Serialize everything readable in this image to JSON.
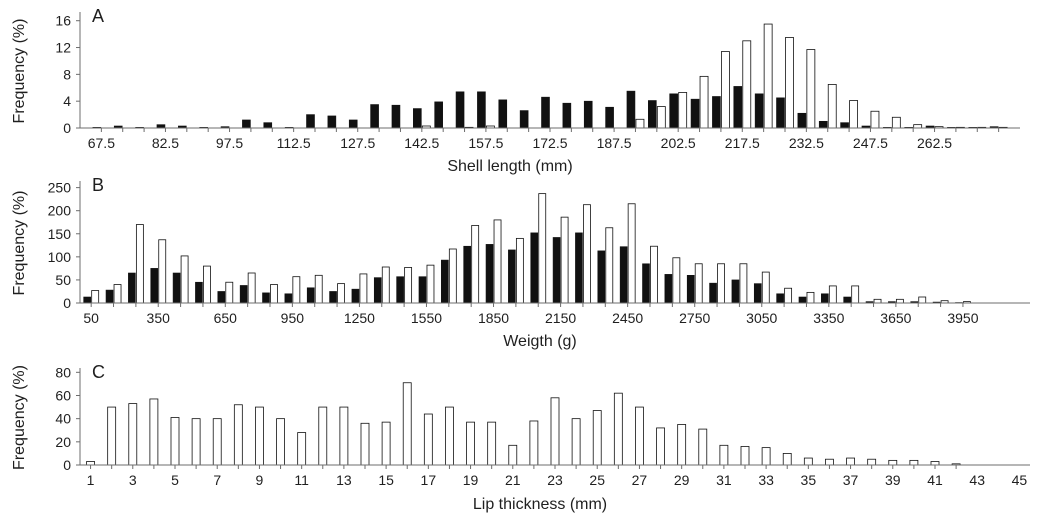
{
  "figure": {
    "colors": {
      "axis": "#6c6c6c",
      "dark_bar_fill": "#111111",
      "light_bar_fill": "#ffffff",
      "bar_stroke": "#111111",
      "text": "#1f1f1f"
    }
  },
  "chart_data": [
    {
      "type": "bar",
      "panel_label": "A",
      "xlabel": "Shell length (mm)",
      "ylabel": "Frequency (%)",
      "ylim": [
        0,
        17
      ],
      "yticks": [
        0,
        4,
        8,
        12,
        16
      ],
      "xlim": [
        62.5,
        282.5
      ],
      "xticks": [
        67.5,
        82.5,
        97.5,
        112.5,
        127.5,
        142.5,
        157.5,
        172.5,
        187.5,
        202.5,
        217.5,
        232.5,
        247.5,
        262.5
      ],
      "xtick_labels": [
        "67.5",
        "82.5",
        "97.5",
        "112.5",
        "127.5",
        "142.5",
        "157.5",
        "172.5",
        "187.5",
        "202.5",
        "217.5",
        "232.5",
        "247.5",
        "262.5"
      ],
      "grid": false,
      "legend": "none",
      "x": [
        67.5,
        72.5,
        77.5,
        82.5,
        87.5,
        92.5,
        97.5,
        102.5,
        107.5,
        112.5,
        117.5,
        122.5,
        127.5,
        132.5,
        137.5,
        142.5,
        147.5,
        152.5,
        157.5,
        162.5,
        167.5,
        172.5,
        177.5,
        182.5,
        187.5,
        192.5,
        197.5,
        202.5,
        207.5,
        212.5,
        217.5,
        222.5,
        227.5,
        232.5,
        237.5,
        242.5,
        247.5,
        252.5,
        257.5,
        262.5,
        267.5,
        272.5,
        277.5
      ],
      "series": [
        {
          "style": "dark",
          "values": [
            0.1,
            0.3,
            0.1,
            0.5,
            0.3,
            0.1,
            0.2,
            1.2,
            0.8,
            0.1,
            2.0,
            1.8,
            1.2,
            3.5,
            3.4,
            2.9,
            3.9,
            5.4,
            5.4,
            4.2,
            2.6,
            4.6,
            3.7,
            4.0,
            3.1,
            5.5,
            4.1,
            5.1,
            4.3,
            4.7,
            6.2,
            5.1,
            4.5,
            2.2,
            1.0,
            0.8,
            0.3,
            0.1,
            0.1,
            0.3,
            0.1,
            0.1,
            0.2
          ]
        },
        {
          "style": "light",
          "values": [
            0,
            0,
            0,
            0,
            0,
            0,
            0,
            0,
            0,
            0,
            0,
            0,
            0,
            0,
            0,
            0.3,
            0,
            0.1,
            0.3,
            0,
            0,
            0,
            0,
            0,
            0,
            1.3,
            3.2,
            5.3,
            7.7,
            11.4,
            13.0,
            15.5,
            13.5,
            11.7,
            6.5,
            4.1,
            2.5,
            1.6,
            0.5,
            0.2,
            0.1,
            0.1,
            0.1
          ]
        }
      ]
    },
    {
      "type": "bar",
      "panel_label": "B",
      "xlabel": "Weigth (g)",
      "ylabel": "Frequency (%)",
      "ylim": [
        0,
        260
      ],
      "yticks": [
        0,
        50,
        100,
        150,
        200,
        250
      ],
      "xlim": [
        0,
        4250
      ],
      "xticks": [
        50,
        350,
        650,
        950,
        1250,
        1550,
        1850,
        2150,
        2450,
        2750,
        3050,
        3350,
        3650,
        3950
      ],
      "xtick_labels": [
        "50",
        "350",
        "650",
        "950",
        "1250",
        "1550",
        "1850",
        "2150",
        "2450",
        "2750",
        "3050",
        "3350",
        "3650",
        "3950"
      ],
      "grid": false,
      "legend": "none",
      "x": [
        50,
        150,
        250,
        350,
        450,
        550,
        650,
        750,
        850,
        950,
        1050,
        1150,
        1250,
        1350,
        1450,
        1550,
        1650,
        1750,
        1850,
        1950,
        2050,
        2150,
        2250,
        2350,
        2450,
        2550,
        2650,
        2750,
        2850,
        2950,
        3050,
        3150,
        3250,
        3350,
        3450,
        3550,
        3650,
        3750,
        3850,
        3950
      ],
      "series": [
        {
          "style": "dark",
          "values": [
            13,
            28,
            65,
            75,
            65,
            45,
            25,
            38,
            22,
            20,
            33,
            25,
            30,
            55,
            57,
            57,
            93,
            123,
            127,
            115,
            152,
            142,
            152,
            113,
            122,
            85,
            62,
            60,
            43,
            50,
            42,
            20,
            13,
            20,
            13,
            3,
            3,
            3,
            2,
            1
          ]
        },
        {
          "style": "light",
          "values": [
            27,
            40,
            170,
            137,
            102,
            80,
            45,
            65,
            40,
            57,
            60,
            42,
            63,
            78,
            77,
            82,
            117,
            168,
            180,
            140,
            237,
            186,
            213,
            163,
            215,
            123,
            98,
            85,
            85,
            85,
            67,
            32,
            23,
            37,
            37,
            8,
            8,
            13,
            5,
            3
          ]
        }
      ]
    },
    {
      "type": "bar",
      "panel_label": "C",
      "xlabel": "Lip thickness (mm)",
      "ylabel": "Frequency (%)",
      "ylim": [
        0,
        82
      ],
      "yticks": [
        0,
        20,
        40,
        60,
        80
      ],
      "xlim": [
        0.5,
        45.5
      ],
      "xticks": [
        1,
        3,
        5,
        7,
        9,
        11,
        13,
        15,
        17,
        19,
        21,
        23,
        25,
        27,
        29,
        31,
        33,
        35,
        37,
        39,
        41,
        43,
        45
      ],
      "xtick_labels": [
        "1",
        "3",
        "5",
        "7",
        "9",
        "11",
        "13",
        "15",
        "17",
        "19",
        "21",
        "23",
        "25",
        "27",
        "29",
        "31",
        "33",
        "35",
        "37",
        "39",
        "41",
        "43",
        "45"
      ],
      "grid": false,
      "legend": "none",
      "x": [
        1,
        2,
        3,
        4,
        5,
        6,
        7,
        8,
        9,
        10,
        11,
        12,
        13,
        14,
        15,
        16,
        17,
        18,
        19,
        20,
        21,
        22,
        23,
        24,
        25,
        26,
        27,
        28,
        29,
        30,
        31,
        32,
        33,
        34,
        35,
        36,
        37,
        38,
        39,
        40,
        41,
        42
      ],
      "series": [
        {
          "style": "light",
          "values": [
            3,
            50,
            53,
            57,
            41,
            40,
            40,
            52,
            50,
            40,
            28,
            50,
            50,
            36,
            37,
            71,
            44,
            50,
            37,
            37,
            17,
            38,
            58,
            40,
            47,
            62,
            50,
            32,
            35,
            31,
            17,
            16,
            15,
            10,
            6,
            5,
            6,
            5,
            4,
            4,
            3,
            1
          ]
        }
      ]
    }
  ]
}
